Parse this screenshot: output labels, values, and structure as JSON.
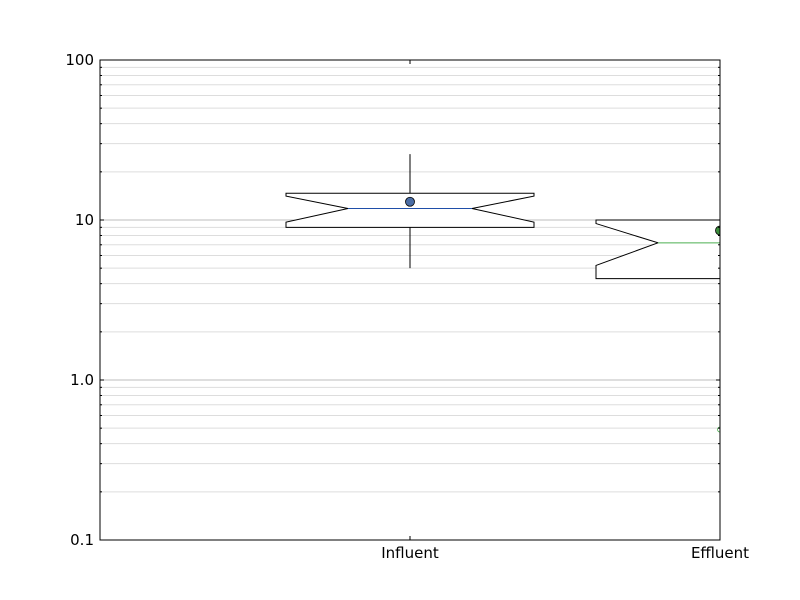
{
  "chart_data": {
    "type": "box",
    "categories": [
      "Influent",
      "Effluent"
    ],
    "y_scale": "log",
    "ylim": [
      0.1,
      100
    ],
    "y_ticks": [
      "0.1",
      "1.0",
      "10",
      "100"
    ],
    "xlim": [
      0,
      2
    ],
    "grid": {
      "y_major": true,
      "y_minor": true,
      "x": false
    },
    "boxes": [
      {
        "category": "Influent",
        "x": 1,
        "q1": 9.0,
        "median": 11.8,
        "q3": 14.7,
        "notch_low": 9.7,
        "notch_high": 14.1,
        "whisker_low": 5.0,
        "whisker_high": 25.8,
        "mean": 13.0,
        "outliers": [],
        "color": "#1f4ea8",
        "mean_color": "#4a6da5"
      },
      {
        "category": "Effluent",
        "x": 2,
        "q1": 4.3,
        "median": 7.2,
        "q3": 10.0,
        "notch_low": 5.2,
        "notch_high": 9.5,
        "whisker_low": null,
        "whisker_high": null,
        "mean": 8.6,
        "outliers": [
          0.49
        ],
        "color": "#4caf50",
        "mean_color": "#3c8c3c"
      }
    ]
  }
}
